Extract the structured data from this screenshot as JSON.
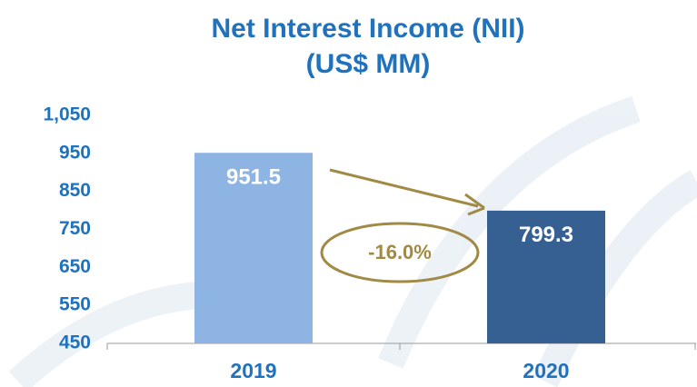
{
  "chart_data": {
    "type": "bar",
    "title": "Net Interest Income (NII)",
    "subtitle": "(US$ MM)",
    "categories": [
      "2019",
      "2020"
    ],
    "values": [
      951.5,
      799.3
    ],
    "colors": [
      "#8eb4e3",
      "#376092"
    ],
    "ylim": [
      450,
      1050
    ],
    "yticks": [
      450,
      550,
      650,
      750,
      850,
      950,
      {
        "value": 1050,
        "label": "1,050"
      }
    ],
    "annotation": "-16.0%"
  }
}
